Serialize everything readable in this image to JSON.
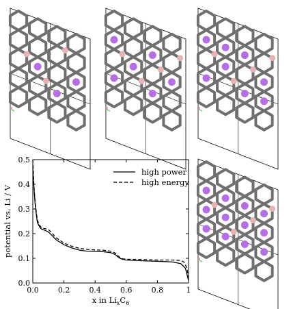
{
  "colors": {
    "carbon": "#6f6f6f",
    "boron": "#e7b3b3",
    "lithium": "#b56ee6",
    "cell_edge": "#000000",
    "axis_marker_green": "#3cc43c",
    "axis_marker_red": "#e05050"
  },
  "structures": {
    "panels": [
      {
        "id": "structure-1",
        "lithium_sites": [
          [
            1,
            1
          ],
          [
            2,
            2
          ],
          [
            3,
            1
          ]
        ],
        "boron_sites": [
          [
            0,
            1
          ],
          [
            1,
            2
          ],
          [
            2,
            0
          ]
        ]
      },
      {
        "id": "structure-2",
        "lithium_sites": [
          [
            0,
            0
          ],
          [
            0,
            2
          ],
          [
            1,
            1
          ],
          [
            2,
            0
          ],
          [
            2,
            2
          ],
          [
            3,
            1
          ]
        ],
        "boron_sites": [
          [
            0,
            1
          ],
          [
            1,
            2
          ],
          [
            2,
            1
          ],
          [
            3,
            0
          ]
        ]
      },
      {
        "id": "structure-3",
        "lithium_sites": [
          [
            0,
            0
          ],
          [
            0,
            2
          ],
          [
            1,
            0
          ],
          [
            1,
            1
          ],
          [
            2,
            0
          ],
          [
            2,
            2
          ],
          [
            3,
            1
          ],
          [
            3,
            2
          ]
        ],
        "boron_sites": [
          [
            0,
            1
          ],
          [
            1,
            2
          ],
          [
            2,
            1
          ],
          [
            3,
            0
          ]
        ]
      },
      {
        "id": "structure-4",
        "lithium_sites": [
          [
            0,
            0
          ],
          [
            0,
            1
          ],
          [
            0,
            2
          ],
          [
            1,
            0
          ],
          [
            1,
            1
          ],
          [
            1,
            2
          ],
          [
            2,
            0
          ],
          [
            2,
            1
          ],
          [
            2,
            2
          ],
          [
            3,
            0
          ],
          [
            3,
            1
          ],
          [
            3,
            2
          ]
        ],
        "boron_sites": [
          [
            0,
            1
          ],
          [
            1,
            2
          ],
          [
            2,
            1
          ],
          [
            3,
            0
          ]
        ]
      }
    ]
  },
  "chart_data": {
    "type": "line",
    "xlabel_main": "x in Li",
    "xlabel_sub1": "x",
    "xlabel_mid": "C",
    "xlabel_sub2": "6",
    "ylabel": "potential vs. Li / V",
    "xlim": [
      0,
      1
    ],
    "ylim": [
      0,
      0.5
    ],
    "xticks": [
      "0.0",
      "0.2",
      "0.4",
      "0.6",
      "0.8",
      "1"
    ],
    "xtick_values": [
      0,
      0.2,
      0.4,
      0.6,
      0.8,
      1.0
    ],
    "yticks": [
      "0.0",
      "0.1",
      "0.2",
      "0.3",
      "0.4",
      "0.5"
    ],
    "ytick_values": [
      0,
      0.1,
      0.2,
      0.3,
      0.4,
      0.5
    ],
    "legend_position": "top-right",
    "series": [
      {
        "name": "high power",
        "style": "solid",
        "x": [
          0.0,
          0.005,
          0.01,
          0.015,
          0.02,
          0.025,
          0.03,
          0.04,
          0.05,
          0.06,
          0.07,
          0.08,
          0.1,
          0.12,
          0.15,
          0.2,
          0.25,
          0.3,
          0.35,
          0.4,
          0.45,
          0.5,
          0.53,
          0.55,
          0.57,
          0.6,
          0.7,
          0.8,
          0.9,
          0.95,
          0.98,
          1.0
        ],
        "y": [
          0.47,
          0.41,
          0.36,
          0.32,
          0.29,
          0.265,
          0.245,
          0.232,
          0.222,
          0.217,
          0.215,
          0.213,
          0.207,
          0.195,
          0.175,
          0.155,
          0.142,
          0.133,
          0.129,
          0.128,
          0.127,
          0.123,
          0.115,
          0.104,
          0.097,
          0.093,
          0.09,
          0.088,
          0.085,
          0.078,
          0.06,
          0.01
        ]
      },
      {
        "name": "high energy",
        "style": "dashed",
        "x": [
          0.0,
          0.005,
          0.01,
          0.015,
          0.02,
          0.025,
          0.03,
          0.04,
          0.05,
          0.06,
          0.07,
          0.08,
          0.1,
          0.12,
          0.15,
          0.2,
          0.25,
          0.3,
          0.35,
          0.4,
          0.45,
          0.5,
          0.53,
          0.55,
          0.57,
          0.6,
          0.7,
          0.8,
          0.9,
          0.95,
          0.97,
          0.99,
          1.0
        ],
        "y": [
          0.5,
          0.43,
          0.37,
          0.33,
          0.3,
          0.275,
          0.255,
          0.238,
          0.228,
          0.223,
          0.221,
          0.22,
          0.217,
          0.205,
          0.183,
          0.162,
          0.149,
          0.14,
          0.136,
          0.134,
          0.133,
          0.129,
          0.121,
          0.108,
          0.099,
          0.096,
          0.095,
          0.093,
          0.093,
          0.091,
          0.085,
          0.06,
          0.015
        ]
      }
    ]
  }
}
